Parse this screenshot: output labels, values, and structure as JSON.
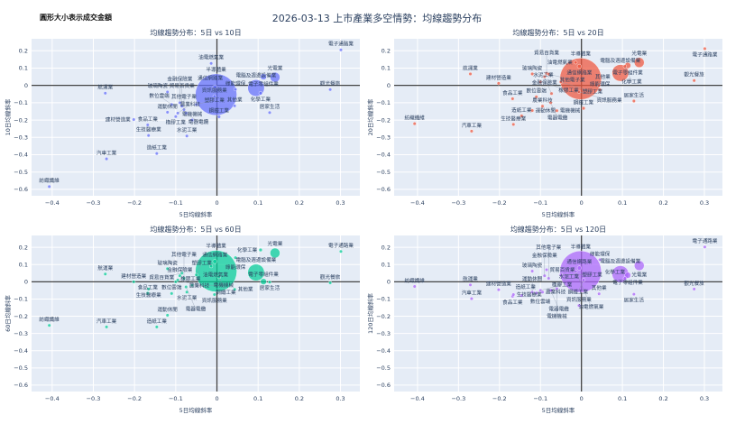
{
  "header": {
    "note": "圓形大小表示成交金額",
    "title": "2026-03-13 上市產業多空情勢：均線趨勢分布"
  },
  "industries": [
    "電子通路業",
    "觀光餐旅",
    "居家生活",
    "紡織纖維",
    "汽車工業",
    "造紙工業",
    "航運業",
    "建材營造業",
    "食品工業",
    "生技醫療業",
    "水泥工業",
    "玻璃陶瓷",
    "油電燃氣業",
    "半導體業",
    "電腦及週邊設備業",
    "光電業",
    "電子零組件業",
    "化學工業",
    "綠能環保",
    "其他業",
    "鋼鐵工業",
    "資訊服務業",
    "通信網路業",
    "電機機械",
    "電器電纜",
    "塑膠工業",
    "橡膠工業",
    "數位雲端",
    "運動休閒",
    "貿易百貨業",
    "金融保險業",
    "其他電子業",
    "農業科技"
  ],
  "chart_data": [
    {
      "type": "scatter",
      "title": "均線趨勢分布：5日 vs 10日",
      "xlabel": "5日均線斜率",
      "ylabel": "10日均線斜率",
      "color": "#636efa",
      "xlim": [
        -0.45,
        0.347
      ],
      "ylim": [
        -0.637,
        0.269
      ],
      "xticks": [
        -0.4,
        -0.3,
        -0.2,
        -0.1,
        0,
        0.1,
        0.2,
        0.3
      ],
      "yticks": [
        -0.6,
        -0.5,
        -0.4,
        -0.3,
        -0.2,
        -0.1,
        0,
        0.1,
        0.2
      ],
      "grid": true,
      "x": [
        0.301,
        0.275,
        0.128,
        -0.407,
        -0.268,
        -0.146,
        -0.271,
        -0.202,
        -0.168,
        -0.166,
        -0.073,
        -0.12,
        -0.014,
        -0.002,
        0.095,
        0.141,
        0.113,
        0.106,
        0.045,
        0.043,
        0.005,
        -0.006,
        -0.005,
        -0.06,
        -0.075,
        -0.05,
        -0.1,
        -0.11,
        -0.12,
        -0.085,
        -0.09,
        -0.08,
        -0.095
      ],
      "y": [
        0.205,
        -0.024,
        -0.157,
        -0.584,
        -0.424,
        -0.393,
        -0.045,
        -0.197,
        -0.228,
        -0.289,
        -0.292,
        -0.038,
        0.127,
        -0.053,
        -0.015,
        0.047,
        0.05,
        -0.045,
        -0.023,
        -0.118,
        -0.181,
        -0.063,
        -0.01,
        -0.2,
        -0.16,
        -0.11,
        -0.18,
        -0.11,
        -0.155,
        -0.12,
        -0.1,
        -0.14,
        -0.16
      ],
      "size": [
        1,
        1,
        1,
        1,
        1,
        1,
        1,
        1,
        1,
        1,
        1,
        1,
        1,
        280,
        45,
        16,
        6,
        2,
        1.5,
        1.2,
        2,
        1.5,
        3,
        1.5,
        1,
        1.5,
        1,
        1,
        1,
        1,
        1.5,
        1,
        1
      ]
    },
    {
      "type": "scatter",
      "title": "均線趨勢分布：5日 vs 20日",
      "xlabel": "5日均線斜率",
      "ylabel": "20日均線斜率",
      "color": "#EF553B",
      "xlim": [
        -0.457,
        0.344
      ],
      "ylim": [
        -0.637,
        0.269
      ],
      "xticks": [
        -0.4,
        -0.3,
        -0.2,
        -0.1,
        0,
        0.1,
        0.2,
        0.3
      ],
      "yticks": [
        -0.6,
        -0.5,
        -0.4,
        -0.3,
        -0.2,
        -0.1,
        0,
        0.1,
        0.2
      ],
      "grid": true,
      "x": [
        0.301,
        0.275,
        0.128,
        -0.407,
        -0.268,
        -0.146,
        -0.271,
        -0.202,
        -0.168,
        -0.166,
        -0.073,
        -0.12,
        -0.014,
        -0.002,
        0.095,
        0.141,
        0.113,
        0.106,
        0.045,
        0.043,
        0.005,
        -0.006,
        -0.005,
        -0.06,
        -0.075,
        -0.05,
        -0.1,
        -0.11,
        -0.12,
        -0.085,
        -0.09,
        -0.08,
        -0.095
      ],
      "y": [
        0.212,
        0.028,
        -0.09,
        -0.221,
        -0.264,
        -0.176,
        0.066,
        0.012,
        -0.077,
        -0.225,
        -0.047,
        0.066,
        0.132,
        0.038,
        0.072,
        0.132,
        0.115,
        0.11,
        -0.025,
        0.0,
        -0.132,
        -0.037,
        0.11,
        -0.146,
        -0.1,
        0.02,
        0.02,
        -0.066,
        -0.145,
        0.07,
        0.05,
        0.065,
        -0.12
      ],
      "size": [
        1,
        1,
        1,
        1,
        1,
        1,
        1,
        1,
        1,
        1,
        1,
        1,
        1,
        280,
        45,
        16,
        6,
        2,
        1.5,
        1.2,
        2,
        1.5,
        3,
        1.5,
        1,
        1.5,
        1,
        1,
        1,
        1,
        1.5,
        1,
        1
      ]
    },
    {
      "type": "scatter",
      "title": "均線趨勢分布：5日 vs 60日",
      "xlabel": "5日均線斜率",
      "ylabel": "60日均線斜率",
      "color": "#00cc96",
      "xlim": [
        -0.45,
        0.347
      ],
      "ylim": [
        -0.637,
        0.269
      ],
      "xticks": [
        -0.4,
        -0.3,
        -0.2,
        -0.1,
        0,
        0.1,
        0.2,
        0.3
      ],
      "yticks": [
        -0.6,
        -0.5,
        -0.4,
        -0.3,
        -0.2,
        -0.1,
        0,
        0.1,
        0.2
      ],
      "grid": true,
      "x": [
        0.301,
        0.275,
        0.128,
        -0.407,
        -0.268,
        -0.146,
        -0.271,
        -0.202,
        -0.168,
        -0.166,
        -0.073,
        -0.12,
        -0.014,
        -0.002,
        0.095,
        0.141,
        0.113,
        0.106,
        0.045,
        0.043,
        0.005,
        -0.006,
        -0.005,
        -0.06,
        -0.075,
        -0.05,
        -0.1,
        -0.11,
        -0.12,
        -0.085,
        -0.09,
        -0.08,
        -0.095
      ],
      "y": [
        0.176,
        -0.006,
        -0.002,
        -0.253,
        -0.262,
        -0.262,
        0.045,
        0.0,
        -0.066,
        -0.042,
        -0.06,
        0.076,
        0.09,
        0.062,
        0.054,
        0.167,
        0.001,
        0.185,
        0.14,
        -0.044,
        0.028,
        -0.074,
        0.118,
        -0.02,
        -0.03,
        0.04,
        0.0,
        -0.068,
        -0.194,
        0.05,
        0.035,
        0.02,
        0.01
      ],
      "size": [
        1,
        1,
        1,
        1,
        1,
        1,
        1,
        1,
        1,
        1,
        1,
        1,
        1,
        280,
        45,
        16,
        6,
        2,
        1.5,
        1.2,
        2,
        1.5,
        3,
        1.5,
        1,
        1.5,
        1,
        1,
        1,
        1,
        1.5,
        1,
        1
      ]
    },
    {
      "type": "scatter",
      "title": "均線趨勢分布：5日 vs 120日",
      "xlabel": "5日均線斜率",
      "ylabel": "120日均線斜率",
      "color": "#ab63fa",
      "xlim": [
        -0.457,
        0.344
      ],
      "ylim": [
        -0.637,
        0.269
      ],
      "xticks": [
        -0.4,
        -0.3,
        -0.2,
        -0.1,
        0,
        0.1,
        0.2,
        0.3
      ],
      "yticks": [
        -0.6,
        -0.5,
        -0.4,
        -0.3,
        -0.2,
        -0.1,
        0,
        0.1,
        0.2
      ],
      "grid": true,
      "x": [
        0.301,
        0.275,
        0.128,
        -0.407,
        -0.268,
        -0.146,
        -0.271,
        -0.202,
        -0.168,
        -0.166,
        -0.073,
        -0.12,
        -0.014,
        -0.002,
        0.095,
        0.141,
        0.113,
        0.106,
        0.045,
        0.043,
        0.005,
        -0.006,
        -0.005,
        -0.06,
        -0.075,
        -0.05,
        -0.1,
        -0.11,
        -0.12,
        -0.085,
        -0.09,
        -0.08,
        -0.095
      ],
      "y": [
        0.202,
        -0.042,
        -0.072,
        -0.027,
        -0.098,
        -0.08,
        -0.018,
        -0.046,
        -0.084,
        -0.074,
        -0.05,
        0.062,
        0.06,
        0.059,
        0.045,
        0.094,
        0.038,
        0.02,
        0.128,
        -0.07,
        0.01,
        -0.138,
        0.08,
        -0.04,
        -0.05,
        0.04,
        -0.05,
        -0.065,
        -0.06,
        0.07,
        0.035,
        0.02,
        -0.06
      ],
      "size": [
        1,
        1,
        1,
        1,
        1,
        1,
        1,
        1,
        1,
        1,
        1,
        1,
        1,
        280,
        45,
        16,
        6,
        2,
        1.5,
        1.2,
        2,
        1.5,
        3,
        1.5,
        1,
        1.5,
        1,
        1,
        1,
        1,
        1.5,
        1,
        1
      ]
    }
  ]
}
